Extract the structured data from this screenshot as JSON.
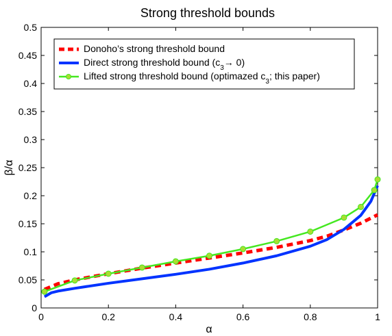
{
  "chart_data": {
    "type": "line",
    "title": "Strong threshold bounds",
    "xlabel": "α",
    "ylabel": "β/α",
    "xlim": [
      0,
      1
    ],
    "ylim": [
      0,
      0.5
    ],
    "xticks": [
      0,
      0.2,
      0.4,
      0.6,
      0.8,
      1
    ],
    "xtick_labels": [
      "0",
      "0.2",
      "0.4",
      "0.6",
      "0.8",
      "1"
    ],
    "yticks": [
      0,
      0.05,
      0.1,
      0.15,
      0.2,
      0.25,
      0.3,
      0.35,
      0.4,
      0.45,
      0.5
    ],
    "ytick_labels": [
      "0",
      "0.05",
      "0.1",
      "0.15",
      "0.2",
      "0.25",
      "0.3",
      "0.35",
      "0.4",
      "0.45",
      "0.5"
    ],
    "grid": false,
    "legend_position": "top-left",
    "series": [
      {
        "name": "Donoho’s strong threshold bound",
        "color": "#ff0000",
        "style": "dashed",
        "x": [
          0.01,
          0.05,
          0.1,
          0.2,
          0.3,
          0.4,
          0.5,
          0.6,
          0.7,
          0.8,
          0.85,
          0.9,
          0.95,
          1.0
        ],
        "y": [
          0.033,
          0.043,
          0.05,
          0.061,
          0.071,
          0.08,
          0.089,
          0.098,
          0.108,
          0.12,
          0.128,
          0.139,
          0.151,
          0.166
        ]
      },
      {
        "name": "Direct strong threshold bound (c3→ 0)",
        "color": "#0033ff",
        "style": "solid",
        "x": [
          0.01,
          0.03,
          0.05,
          0.1,
          0.2,
          0.3,
          0.4,
          0.5,
          0.6,
          0.7,
          0.8,
          0.85,
          0.9,
          0.95,
          0.98,
          1.0
        ],
        "y": [
          0.02,
          0.027,
          0.03,
          0.035,
          0.044,
          0.052,
          0.06,
          0.069,
          0.08,
          0.093,
          0.11,
          0.122,
          0.14,
          0.165,
          0.19,
          0.218
        ]
      },
      {
        "name": "Lifted strong threshold bound (optimazed c3; this paper)",
        "color": "#44e820",
        "marker_color": "#aadd33",
        "style": "solid-markers",
        "x": [
          0.01,
          0.1,
          0.2,
          0.3,
          0.4,
          0.5,
          0.6,
          0.7,
          0.8,
          0.9,
          0.95,
          0.99,
          1.0
        ],
        "y": [
          0.029,
          0.049,
          0.061,
          0.072,
          0.083,
          0.093,
          0.105,
          0.119,
          0.136,
          0.161,
          0.18,
          0.21,
          0.229
        ]
      }
    ],
    "legend": {
      "entries": [
        {
          "text": "Donoho’s strong threshold bound",
          "series": 0
        },
        {
          "text_main": "Direct strong threshold bound (c",
          "sub": "3",
          "text_tail": "→ 0)",
          "series": 1
        },
        {
          "text_main": "Lifted strong threshold bound (optimazed c",
          "sub": "3",
          "text_tail": "; this paper)",
          "series": 2
        }
      ]
    }
  }
}
